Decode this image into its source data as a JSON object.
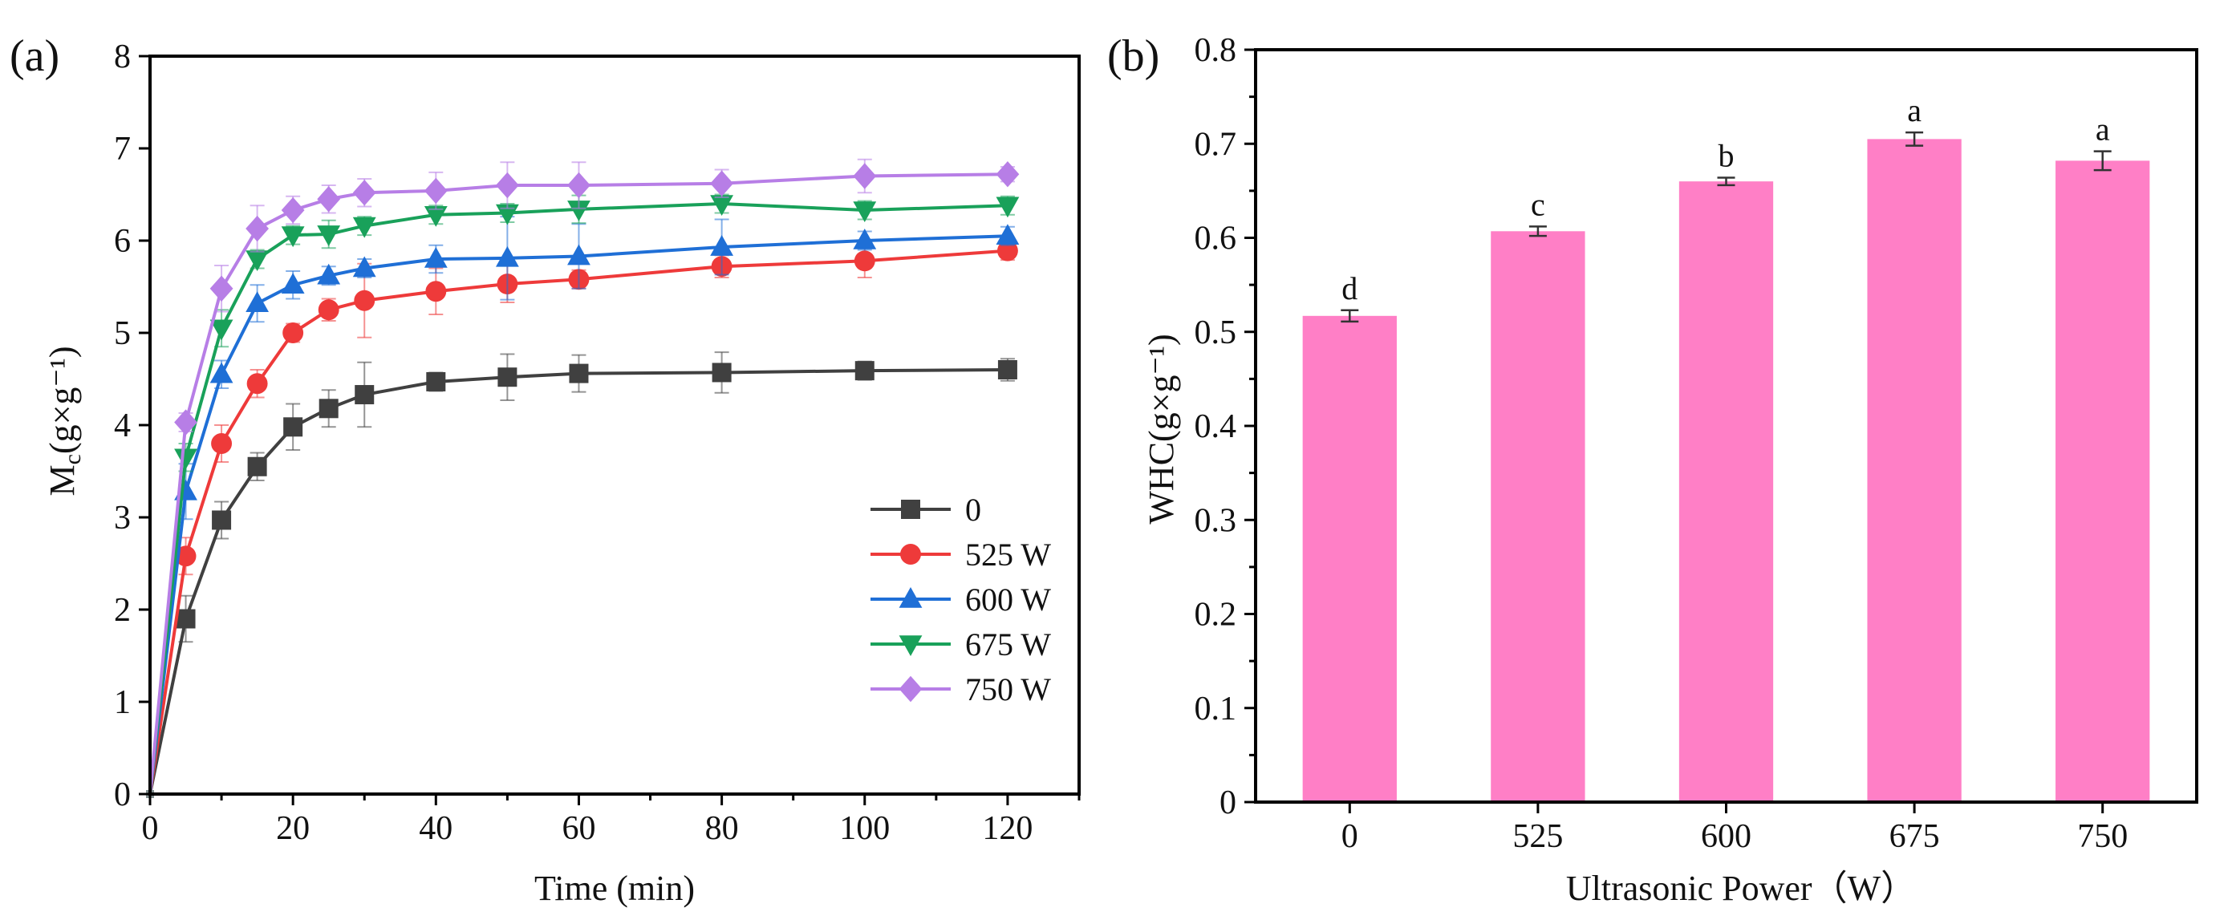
{
  "chart_data": [
    {
      "panel": "(a)",
      "type": "line",
      "xlabel": "Time  (min)",
      "ylabel": "Mc(g×g⁻¹)",
      "xlim": [
        0,
        130
      ],
      "ylim": [
        0,
        8
      ],
      "xticks": [
        0,
        20,
        40,
        60,
        80,
        100,
        120
      ],
      "yticks": [
        0,
        1,
        2,
        3,
        4,
        5,
        6,
        7,
        8
      ],
      "legend_position": "center-right",
      "x": [
        0,
        5,
        10,
        15,
        20,
        25,
        30,
        40,
        50,
        60,
        80,
        100,
        120
      ],
      "series": [
        {
          "name": "0",
          "color": "#404040",
          "marker": "square",
          "values": [
            0,
            1.9,
            2.97,
            3.55,
            3.98,
            4.18,
            4.33,
            4.47,
            4.52,
            4.56,
            4.57,
            4.59,
            4.6
          ],
          "errors": [
            0,
            0.25,
            0.2,
            0.15,
            0.25,
            0.2,
            0.35,
            0.1,
            0.25,
            0.2,
            0.22,
            0.1,
            0.12
          ]
        },
        {
          "name": "525 W",
          "color": "#ee3a3a",
          "marker": "circle",
          "values": [
            0,
            2.58,
            3.8,
            4.45,
            5.0,
            5.25,
            5.35,
            5.45,
            5.53,
            5.58,
            5.72,
            5.78,
            5.89
          ],
          "errors": [
            0,
            0.2,
            0.2,
            0.15,
            0.1,
            0.12,
            0.4,
            0.25,
            0.2,
            0.1,
            0.12,
            0.18,
            0.1
          ]
        },
        {
          "name": "600 W",
          "color": "#1f6fd6",
          "marker": "triangle-up",
          "values": [
            0,
            3.28,
            4.55,
            5.32,
            5.52,
            5.62,
            5.7,
            5.8,
            5.81,
            5.83,
            5.93,
            6.0,
            6.05
          ],
          "errors": [
            0,
            0.3,
            0.15,
            0.2,
            0.15,
            0.1,
            0.1,
            0.15,
            0.45,
            0.35,
            0.3,
            0.1,
            0.1
          ]
        },
        {
          "name": "675 W",
          "color": "#19a15a",
          "marker": "triangle-down",
          "values": [
            0,
            3.65,
            5.05,
            5.8,
            6.06,
            6.07,
            6.16,
            6.28,
            6.3,
            6.34,
            6.4,
            6.33,
            6.38
          ],
          "errors": [
            0,
            0.15,
            0.2,
            0.1,
            0.1,
            0.15,
            0.1,
            0.1,
            0.1,
            0.15,
            0.1,
            0.1,
            0.1
          ]
        },
        {
          "name": "750 W",
          "color": "#b77ee6",
          "marker": "diamond",
          "values": [
            0,
            4.03,
            5.48,
            6.13,
            6.33,
            6.45,
            6.52,
            6.54,
            6.6,
            6.6,
            6.62,
            6.7,
            6.72
          ],
          "errors": [
            0,
            0.1,
            0.25,
            0.25,
            0.15,
            0.15,
            0.15,
            0.2,
            0.25,
            0.25,
            0.15,
            0.18,
            0.08
          ]
        }
      ]
    },
    {
      "panel": "(b)",
      "type": "bar",
      "xlabel": "Ultrasonic Power（W）",
      "ylabel": "WHC(g×g⁻¹)",
      "ylim": [
        0,
        0.8
      ],
      "yticks": [
        "0",
        "0.1",
        "0.2",
        "0.3",
        "0.4",
        "0.5",
        "0.6",
        "0.7",
        "0.8"
      ],
      "categories": [
        "0",
        "525",
        "600",
        "675",
        "750"
      ],
      "values": [
        0.517,
        0.607,
        0.66,
        0.705,
        0.682
      ],
      "errors": [
        0.006,
        0.005,
        0.004,
        0.007,
        0.01
      ],
      "letters": [
        "d",
        "c",
        "b",
        "a",
        "a"
      ],
      "bar_color": "#ff7fc6"
    }
  ]
}
